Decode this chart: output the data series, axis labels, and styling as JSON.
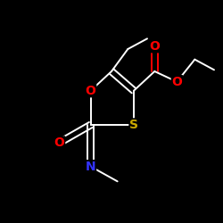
{
  "background": "#000000",
  "bond_color": "#ffffff",
  "atom_colors": {
    "O": "#ff0000",
    "S": "#ccaa00",
    "N": "#3333ff",
    "C": "#ffffff"
  },
  "figsize": [
    2.5,
    2.5
  ],
  "dpi": 100,
  "xlim": [
    0,
    250
  ],
  "ylim": [
    0,
    250
  ]
}
